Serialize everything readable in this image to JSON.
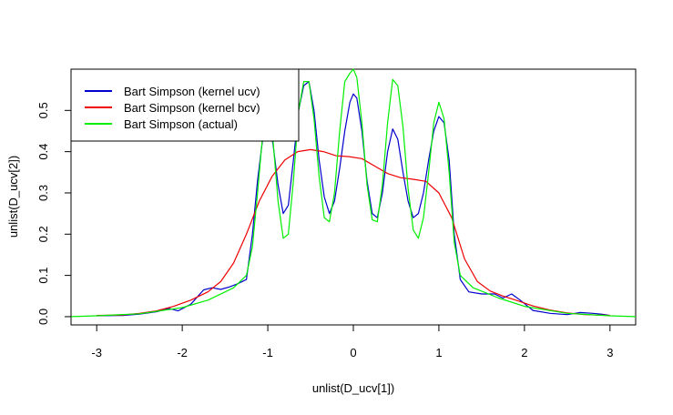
{
  "chart_data": {
    "type": "line",
    "title": "",
    "xlabel": "unlist(D_ucv[1])",
    "ylabel": "unlist(D_ucv[2])",
    "xlim": [
      -3.3,
      3.3
    ],
    "ylim": [
      -0.02,
      0.6
    ],
    "x_ticks": [
      -3,
      -2,
      -1,
      0,
      1,
      2,
      3
    ],
    "x_tick_labels": [
      "-3",
      "-2",
      "-1",
      "0",
      "1",
      "2",
      "3"
    ],
    "y_ticks": [
      0.0,
      0.1,
      0.2,
      0.3,
      0.4,
      0.5
    ],
    "y_tick_labels": [
      "0.0",
      "0.1",
      "0.2",
      "0.3",
      "0.4",
      "0.5"
    ],
    "grid": false,
    "legend_position": "top-left",
    "series": [
      {
        "name": "Bart Simpson (kernel ucv)",
        "color": "#0000CC",
        "x": [
          -3.0,
          -2.7,
          -2.5,
          -2.3,
          -2.15,
          -2.05,
          -1.9,
          -1.75,
          -1.65,
          -1.55,
          -1.45,
          -1.35,
          -1.25,
          -1.18,
          -1.12,
          -1.06,
          -1.0,
          -0.94,
          -0.88,
          -0.82,
          -0.76,
          -0.7,
          -0.64,
          -0.58,
          -0.52,
          -0.46,
          -0.4,
          -0.34,
          -0.28,
          -0.22,
          -0.16,
          -0.1,
          -0.04,
          0.0,
          0.04,
          0.1,
          0.16,
          0.22,
          0.28,
          0.34,
          0.4,
          0.46,
          0.52,
          0.58,
          0.64,
          0.7,
          0.76,
          0.82,
          0.88,
          0.94,
          1.0,
          1.06,
          1.12,
          1.18,
          1.25,
          1.35,
          1.5,
          1.65,
          1.75,
          1.85,
          1.95,
          2.1,
          2.3,
          2.5,
          2.65,
          2.8,
          2.9,
          3.0
        ],
        "y": [
          0.002,
          0.003,
          0.006,
          0.012,
          0.02,
          0.014,
          0.03,
          0.065,
          0.07,
          0.066,
          0.072,
          0.08,
          0.09,
          0.2,
          0.33,
          0.43,
          0.47,
          0.42,
          0.32,
          0.25,
          0.27,
          0.38,
          0.5,
          0.56,
          0.57,
          0.5,
          0.38,
          0.29,
          0.25,
          0.28,
          0.36,
          0.45,
          0.52,
          0.54,
          0.53,
          0.45,
          0.33,
          0.25,
          0.24,
          0.3,
          0.4,
          0.455,
          0.43,
          0.35,
          0.28,
          0.24,
          0.25,
          0.3,
          0.38,
          0.45,
          0.485,
          0.47,
          0.38,
          0.2,
          0.09,
          0.06,
          0.055,
          0.055,
          0.045,
          0.055,
          0.04,
          0.015,
          0.008,
          0.005,
          0.01,
          0.008,
          0.006,
          0.003
        ]
      },
      {
        "name": "Bart Simpson (kernel bcv)",
        "color": "#EE0000",
        "x": [
          -3.0,
          -2.7,
          -2.5,
          -2.3,
          -2.1,
          -1.9,
          -1.7,
          -1.55,
          -1.4,
          -1.25,
          -1.1,
          -0.95,
          -0.8,
          -0.65,
          -0.5,
          -0.35,
          -0.2,
          -0.05,
          0.1,
          0.25,
          0.4,
          0.55,
          0.7,
          0.85,
          1.0,
          1.15,
          1.3,
          1.45,
          1.6,
          1.75,
          1.9,
          2.1,
          2.3,
          2.5,
          2.7,
          3.0
        ],
        "y": [
          0.003,
          0.004,
          0.008,
          0.014,
          0.025,
          0.04,
          0.06,
          0.085,
          0.13,
          0.2,
          0.28,
          0.34,
          0.38,
          0.4,
          0.405,
          0.4,
          0.39,
          0.388,
          0.383,
          0.365,
          0.347,
          0.337,
          0.333,
          0.328,
          0.3,
          0.24,
          0.14,
          0.085,
          0.062,
          0.05,
          0.04,
          0.026,
          0.016,
          0.009,
          0.005,
          0.003
        ]
      },
      {
        "name": "Bart Simpson (actual)",
        "color": "#00EE00",
        "x": [
          -3.3,
          -3.0,
          -2.5,
          -2.0,
          -1.7,
          -1.4,
          -1.25,
          -1.18,
          -1.12,
          -1.06,
          -1.0,
          -0.94,
          -0.88,
          -0.82,
          -0.76,
          -0.7,
          -0.64,
          -0.58,
          -0.52,
          -0.46,
          -0.4,
          -0.34,
          -0.28,
          -0.22,
          -0.16,
          -0.1,
          -0.04,
          0.0,
          0.04,
          0.1,
          0.16,
          0.22,
          0.28,
          0.34,
          0.4,
          0.46,
          0.52,
          0.58,
          0.64,
          0.7,
          0.76,
          0.82,
          0.88,
          0.94,
          1.0,
          1.06,
          1.12,
          1.18,
          1.25,
          1.4,
          1.7,
          2.0,
          2.5,
          3.0,
          3.3
        ],
        "y": [
          0.0,
          0.002,
          0.007,
          0.022,
          0.04,
          0.07,
          0.1,
          0.17,
          0.3,
          0.44,
          0.52,
          0.43,
          0.28,
          0.19,
          0.2,
          0.33,
          0.5,
          0.57,
          0.57,
          0.48,
          0.34,
          0.24,
          0.23,
          0.3,
          0.45,
          0.57,
          0.59,
          0.6,
          0.58,
          0.47,
          0.32,
          0.235,
          0.23,
          0.32,
          0.47,
          0.575,
          0.56,
          0.46,
          0.31,
          0.21,
          0.19,
          0.24,
          0.35,
          0.47,
          0.52,
          0.48,
          0.35,
          0.18,
          0.1,
          0.07,
          0.045,
          0.025,
          0.008,
          0.002,
          0.0
        ]
      }
    ]
  }
}
